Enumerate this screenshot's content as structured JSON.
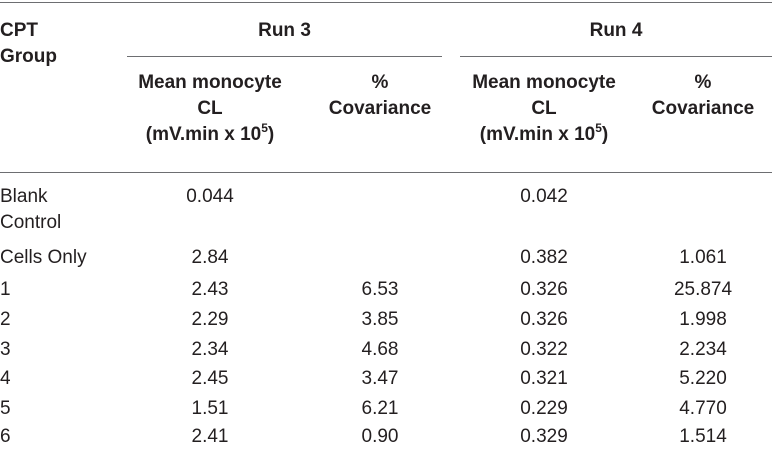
{
  "table": {
    "group_header_line1": "CPT",
    "group_header_line2": "Group",
    "run3_header": "Run 3",
    "run4_header": "Run 4",
    "mean_line1": "Mean monocyte",
    "mean_line2": "CL",
    "mean_line3_base": "(mV.min x 10",
    "mean_line3_exp": "5",
    "mean_line3_close": ")",
    "cov_line1": "%",
    "cov_line2": "Covariance",
    "rows": [
      {
        "group": "Blank",
        "group_cont": "Control",
        "run3_mean": "0.044",
        "run3_cov": "",
        "run4_mean": "0.042",
        "run4_cov": ""
      },
      {
        "group": "Cells Only",
        "run3_mean": "2.84",
        "run3_cov": "",
        "run4_mean": "0.382",
        "run4_cov": "1.061"
      },
      {
        "group": "1",
        "run3_mean": "2.43",
        "run3_cov": "6.53",
        "run4_mean": "0.326",
        "run4_cov": "25.874"
      },
      {
        "group": "2",
        "run3_mean": "2.29",
        "run3_cov": "3.85",
        "run4_mean": "0.326",
        "run4_cov": "1.998"
      },
      {
        "group": "3",
        "run3_mean": "2.34",
        "run3_cov": "4.68",
        "run4_mean": "0.322",
        "run4_cov": "2.234"
      },
      {
        "group": "4",
        "run3_mean": "2.45",
        "run3_cov": "3.47",
        "run4_mean": "0.321",
        "run4_cov": "5.220"
      },
      {
        "group": "5",
        "run3_mean": "1.51",
        "run3_cov": "6.21",
        "run4_mean": "0.229",
        "run4_cov": "4.770"
      },
      {
        "group": "6",
        "run3_mean": "2.41",
        "run3_cov": "0.90",
        "run4_mean": "0.329",
        "run4_cov": "1.514"
      }
    ]
  }
}
